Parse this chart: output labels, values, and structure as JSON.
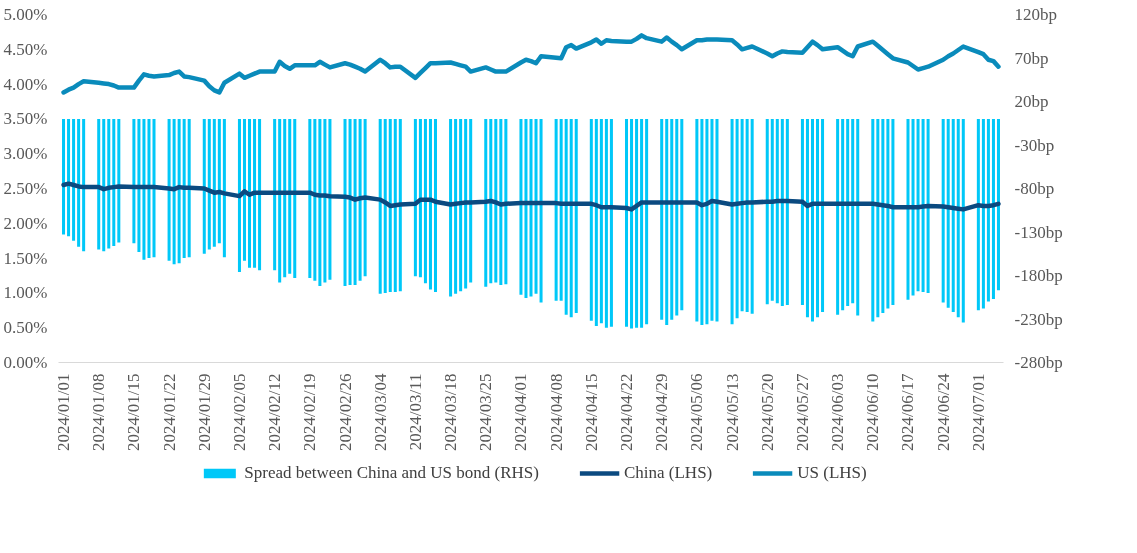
{
  "chart_data": {
    "type": "line",
    "x": [
      "2024-01-01",
      "2024-01-02",
      "2024-01-03",
      "2024-01-04",
      "2024-01-05",
      "2024-01-08",
      "2024-01-09",
      "2024-01-10",
      "2024-01-11",
      "2024-01-12",
      "2024-01-15",
      "2024-01-16",
      "2024-01-17",
      "2024-01-18",
      "2024-01-19",
      "2024-01-22",
      "2024-01-23",
      "2024-01-24",
      "2024-01-25",
      "2024-01-26",
      "2024-01-29",
      "2024-01-30",
      "2024-01-31",
      "2024-02-01",
      "2024-02-02",
      "2024-02-05",
      "2024-02-06",
      "2024-02-07",
      "2024-02-08",
      "2024-02-09",
      "2024-02-12",
      "2024-02-13",
      "2024-02-14",
      "2024-02-15",
      "2024-02-16",
      "2024-02-19",
      "2024-02-20",
      "2024-02-21",
      "2024-02-22",
      "2024-02-23",
      "2024-02-26",
      "2024-02-27",
      "2024-02-28",
      "2024-02-29",
      "2024-03-01",
      "2024-03-04",
      "2024-03-05",
      "2024-03-06",
      "2024-03-07",
      "2024-03-08",
      "2024-03-11",
      "2024-03-12",
      "2024-03-13",
      "2024-03-14",
      "2024-03-15",
      "2024-03-18",
      "2024-03-19",
      "2024-03-20",
      "2024-03-21",
      "2024-03-22",
      "2024-03-25",
      "2024-03-26",
      "2024-03-27",
      "2024-03-28",
      "2024-03-29",
      "2024-04-01",
      "2024-04-02",
      "2024-04-03",
      "2024-04-04",
      "2024-04-05",
      "2024-04-08",
      "2024-04-09",
      "2024-04-10",
      "2024-04-11",
      "2024-04-12",
      "2024-04-15",
      "2024-04-16",
      "2024-04-17",
      "2024-04-18",
      "2024-04-19",
      "2024-04-22",
      "2024-04-23",
      "2024-04-24",
      "2024-04-25",
      "2024-04-26",
      "2024-04-29",
      "2024-04-30",
      "2024-05-01",
      "2024-05-02",
      "2024-05-03",
      "2024-05-06",
      "2024-05-07",
      "2024-05-08",
      "2024-05-09",
      "2024-05-10",
      "2024-05-13",
      "2024-05-14",
      "2024-05-15",
      "2024-05-16",
      "2024-05-17",
      "2024-05-20",
      "2024-05-21",
      "2024-05-22",
      "2024-05-23",
      "2024-05-24",
      "2024-05-27",
      "2024-05-28",
      "2024-05-29",
      "2024-05-30",
      "2024-05-31",
      "2024-06-03",
      "2024-06-04",
      "2024-06-05",
      "2024-06-06",
      "2024-06-07",
      "2024-06-10",
      "2024-06-11",
      "2024-06-12",
      "2024-06-13",
      "2024-06-14",
      "2024-06-17",
      "2024-06-18",
      "2024-06-19",
      "2024-06-20",
      "2024-06-21",
      "2024-06-24",
      "2024-06-25",
      "2024-06-26",
      "2024-06-27",
      "2024-06-28",
      "2024-07-01",
      "2024-07-02",
      "2024-07-03",
      "2024-07-04",
      "2024-07-05"
    ],
    "series": [
      {
        "name": "Spread between China and US bond (RHS)",
        "type": "bar",
        "axis": "y2",
        "color": "#00c8f8",
        "values": [
          -133,
          -135,
          -140,
          -147,
          -152,
          -150,
          -152,
          -149,
          -146,
          -142,
          -143,
          -153,
          -162,
          -160,
          -159,
          -163,
          -167,
          -166,
          -160,
          -159,
          -155,
          -150,
          -147,
          -143,
          -159,
          -176,
          -163,
          -171,
          -171,
          -174,
          -174,
          -188,
          -182,
          -178,
          -183,
          -183,
          -186,
          -192,
          -188,
          -185,
          -192,
          -191,
          -191,
          -186,
          -181,
          -201,
          -200,
          -199,
          -199,
          -198,
          -181,
          -182,
          -189,
          -196,
          -199,
          -204,
          -201,
          -198,
          -195,
          -188,
          -193,
          -189,
          -188,
          -191,
          -190,
          -202,
          -206,
          -204,
          -201,
          -211,
          -209,
          -209,
          -225,
          -228,
          -223,
          -232,
          -238,
          -235,
          -240,
          -239,
          -239,
          -241,
          -240,
          -240,
          -236,
          -231,
          -237,
          -231,
          -226,
          -220,
          -233,
          -237,
          -236,
          -232,
          -233,
          -236,
          -229,
          -221,
          -222,
          -224,
          -213,
          -209,
          -212,
          -215,
          -214,
          -214,
          -228,
          -233,
          -228,
          -222,
          -225,
          -220,
          -215,
          -212,
          -226,
          -233,
          -228,
          -223,
          -218,
          -214,
          -208,
          -203,
          -198,
          -199,
          -200,
          -211,
          -217,
          -222,
          -228,
          -234,
          -220,
          -218,
          -210,
          -207,
          -197
        ]
      },
      {
        "name": "China (LHS)",
        "color": "#0b4a80",
        "values": [
          2.55,
          2.57,
          2.55,
          2.53,
          2.52,
          2.52,
          2.49,
          2.51,
          2.52,
          2.53,
          2.52,
          2.52,
          2.52,
          2.52,
          2.52,
          2.5,
          2.49,
          2.52,
          2.51,
          2.51,
          2.5,
          2.47,
          2.44,
          2.45,
          2.43,
          2.39,
          2.46,
          2.41,
          2.44,
          2.44,
          2.44,
          2.44,
          2.44,
          2.44,
          2.44,
          2.44,
          2.41,
          2.4,
          2.4,
          2.39,
          2.38,
          2.37,
          2.34,
          2.36,
          2.37,
          2.34,
          2.3,
          2.25,
          2.26,
          2.27,
          2.28,
          2.34,
          2.34,
          2.34,
          2.31,
          2.27,
          2.28,
          2.29,
          2.3,
          2.3,
          2.31,
          2.32,
          2.3,
          2.27,
          2.28,
          2.29,
          2.29,
          2.29,
          2.29,
          2.29,
          2.29,
          2.28,
          2.28,
          2.28,
          2.28,
          2.28,
          2.26,
          2.23,
          2.23,
          2.23,
          2.22,
          2.2,
          2.25,
          2.3,
          2.3,
          2.3,
          2.3,
          2.3,
          2.3,
          2.3,
          2.3,
          2.26,
          2.28,
          2.32,
          2.31,
          2.27,
          2.28,
          2.29,
          2.3,
          2.3,
          2.31,
          2.31,
          2.32,
          2.32,
          2.32,
          2.31,
          2.25,
          2.28,
          2.28,
          2.28,
          2.28,
          2.28,
          2.28,
          2.28,
          2.28,
          2.28,
          2.27,
          2.26,
          2.25,
          2.23,
          2.23,
          2.23,
          2.23,
          2.24,
          2.25,
          2.24,
          2.23,
          2.22,
          2.21,
          2.2,
          2.26,
          2.25,
          2.25,
          2.26,
          2.28
        ]
      },
      {
        "name": "US (LHS)",
        "color": "#0a8bbb",
        "values": [
          3.88,
          3.92,
          3.95,
          4.0,
          4.04,
          4.02,
          4.01,
          4.0,
          3.98,
          3.95,
          3.95,
          4.05,
          4.14,
          4.12,
          4.11,
          4.13,
          4.16,
          4.18,
          4.11,
          4.1,
          4.05,
          3.97,
          3.91,
          3.88,
          4.02,
          4.15,
          4.09,
          4.12,
          4.15,
          4.18,
          4.18,
          4.32,
          4.26,
          4.22,
          4.27,
          4.27,
          4.27,
          4.32,
          4.28,
          4.24,
          4.3,
          4.28,
          4.25,
          4.22,
          4.18,
          4.35,
          4.3,
          4.24,
          4.25,
          4.25,
          4.09,
          4.16,
          4.23,
          4.3,
          4.3,
          4.31,
          4.29,
          4.27,
          4.25,
          4.18,
          4.24,
          4.21,
          4.18,
          4.18,
          4.18,
          4.31,
          4.35,
          4.33,
          4.3,
          4.4,
          4.38,
          4.37,
          4.53,
          4.56,
          4.51,
          4.6,
          4.64,
          4.58,
          4.63,
          4.62,
          4.61,
          4.61,
          4.65,
          4.7,
          4.66,
          4.61,
          4.67,
          4.61,
          4.56,
          4.5,
          4.63,
          4.63,
          4.64,
          4.64,
          4.64,
          4.63,
          4.57,
          4.5,
          4.52,
          4.54,
          4.44,
          4.4,
          4.44,
          4.47,
          4.46,
          4.45,
          4.53,
          4.61,
          4.56,
          4.5,
          4.53,
          4.48,
          4.43,
          4.4,
          4.54,
          4.61,
          4.55,
          4.49,
          4.43,
          4.37,
          4.31,
          4.26,
          4.21,
          4.23,
          4.25,
          4.35,
          4.4,
          4.44,
          4.49,
          4.54,
          4.46,
          4.43,
          4.35,
          4.33,
          4.25
        ]
      }
    ],
    "xlim": [
      "2023-12-31",
      "2024-07-06"
    ],
    "xticks": [
      {
        "value": "2024-01-01",
        "label": "2024/01/01"
      },
      {
        "value": "2024-01-08",
        "label": "2024/01/08"
      },
      {
        "value": "2024-01-15",
        "label": "2024/01/15"
      },
      {
        "value": "2024-01-22",
        "label": "2024/01/22"
      },
      {
        "value": "2024-01-29",
        "label": "2024/01/29"
      },
      {
        "value": "2024-02-05",
        "label": "2024/02/05"
      },
      {
        "value": "2024-02-12",
        "label": "2024/02/12"
      },
      {
        "value": "2024-02-19",
        "label": "2024/02/19"
      },
      {
        "value": "2024-02-26",
        "label": "2024/02/26"
      },
      {
        "value": "2024-03-04",
        "label": "2024/03/04"
      },
      {
        "value": "2024-03-11",
        "label": "2024/03/11"
      },
      {
        "value": "2024-03-18",
        "label": "2024/03/18"
      },
      {
        "value": "2024-03-25",
        "label": "2024/03/25"
      },
      {
        "value": "2024-04-01",
        "label": "2024/04/01"
      },
      {
        "value": "2024-04-08",
        "label": "2024/04/08"
      },
      {
        "value": "2024-04-15",
        "label": "2024/04/15"
      },
      {
        "value": "2024-04-22",
        "label": "2024/04/22"
      },
      {
        "value": "2024-04-29",
        "label": "2024/04/29"
      },
      {
        "value": "2024-05-06",
        "label": "2024/05/06"
      },
      {
        "value": "2024-05-13",
        "label": "2024/05/13"
      },
      {
        "value": "2024-05-20",
        "label": "2024/05/20"
      },
      {
        "value": "2024-05-27",
        "label": "2024/05/27"
      },
      {
        "value": "2024-06-03",
        "label": "2024/06/03"
      },
      {
        "value": "2024-06-10",
        "label": "2024/06/10"
      },
      {
        "value": "2024-06-17",
        "label": "2024/06/17"
      },
      {
        "value": "2024-06-24",
        "label": "2024/06/24"
      },
      {
        "value": "2024-07-01",
        "label": "2024/07/01"
      }
    ],
    "ylim": [
      0,
      5
    ],
    "yticks": [
      {
        "value": 0,
        "label": "0.00%"
      },
      {
        "value": 0.5,
        "label": "0.50%"
      },
      {
        "value": 1,
        "label": "1.00%"
      },
      {
        "value": 1.5,
        "label": "1.50%"
      },
      {
        "value": 2,
        "label": "2.00%"
      },
      {
        "value": 2.5,
        "label": "2.50%"
      },
      {
        "value": 3,
        "label": "3.00%"
      },
      {
        "value": 3.5,
        "label": "3.50%"
      },
      {
        "value": 4,
        "label": "4.00%"
      },
      {
        "value": 4.5,
        "label": "4.50%"
      },
      {
        "value": 5,
        "label": "5.00%"
      }
    ],
    "y2lim": [
      -280,
      120
    ],
    "y2ticks": [
      {
        "value": -280,
        "label": "-280bp"
      },
      {
        "value": -230,
        "label": "-230bp"
      },
      {
        "value": -180,
        "label": "-180bp"
      },
      {
        "value": -130,
        "label": "-130bp"
      },
      {
        "value": -80,
        "label": "-80bp"
      },
      {
        "value": -30,
        "label": "-30bp"
      },
      {
        "value": 20,
        "label": "20bp"
      },
      {
        "value": 70,
        "label": "70bp"
      },
      {
        "value": 120,
        "label": "120bp"
      }
    ],
    "legend": "bottom",
    "grid": false
  }
}
